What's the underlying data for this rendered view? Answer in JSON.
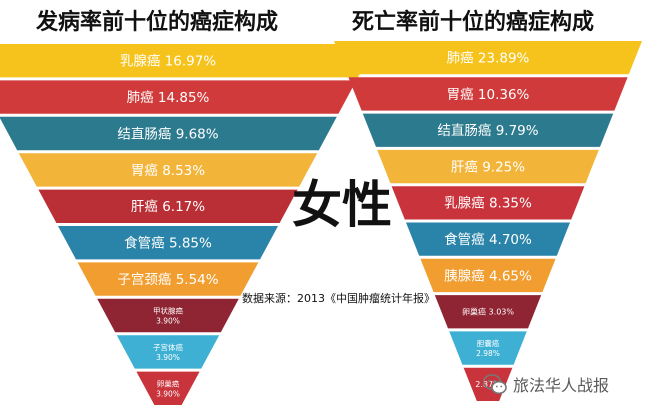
{
  "titles": {
    "left": "发病率前十位的癌症构成",
    "right": "死亡率前十位的癌症构成"
  },
  "center_label": "女性",
  "source": "数据来源：2013《中国肿瘤统计年报》",
  "watermark": {
    "text": "旅法华人战报",
    "icon": "wechat-icon"
  },
  "chart_data": [
    {
      "type": "funnel",
      "title": "发病率前十位的癌症构成",
      "categories": [
        "乳腺癌",
        "肺癌",
        "结直肠癌",
        "胃癌",
        "肝癌",
        "食管癌",
        "子宫颈癌",
        "甲状腺癌",
        "子宫体癌",
        "卵巢癌"
      ],
      "values": [
        16.97,
        14.85,
        9.68,
        8.53,
        6.17,
        5.85,
        5.54,
        3.9,
        3.9,
        3.9
      ],
      "labels": [
        "乳腺癌 16.97%",
        "肺癌 14.85%",
        "结直肠癌 9.68%",
        "胃癌 8.53%",
        "肝癌 6.17%",
        "食管癌 5.85%",
        "子宫颈癌 5.54%",
        "甲状腺癌|3.90%",
        "子宫体癌|3.90%",
        "卵巢癌|3.90%"
      ],
      "colors": [
        "#f6c31c",
        "#d13a3a",
        "#2c7a8e",
        "#f3b43a",
        "#b92f35",
        "#2a83a8",
        "#f19d2f",
        "#8f2433",
        "#3db0d3",
        "#c9333c"
      ]
    },
    {
      "type": "funnel",
      "title": "死亡率前十位的癌症构成",
      "categories": [
        "肺癌",
        "胃癌",
        "结直肠癌",
        "肝癌",
        "乳腺癌",
        "食管癌",
        "胰腺癌",
        "卵巢癌",
        "胆囊癌",
        ""
      ],
      "values": [
        23.89,
        10.36,
        9.79,
        9.25,
        8.35,
        4.7,
        4.65,
        3.03,
        2.98,
        2.87
      ],
      "labels": [
        "肺癌 23.89%",
        "胃癌 10.36%",
        "结直肠癌 9.79%",
        "肝癌 9.25%",
        "乳腺癌 8.35%",
        "食管癌 4.70%",
        "胰腺癌 4.65%",
        "卵巢癌 3.03%",
        "胆囊癌|2.98%",
        "2.87%"
      ],
      "colors": [
        "#f6c31c",
        "#d13a3a",
        "#2c7a8e",
        "#f3b43a",
        "#c9333c",
        "#2a83a8",
        "#f19d2f",
        "#8f2433",
        "#3db0d3",
        "#c9333c"
      ]
    }
  ]
}
